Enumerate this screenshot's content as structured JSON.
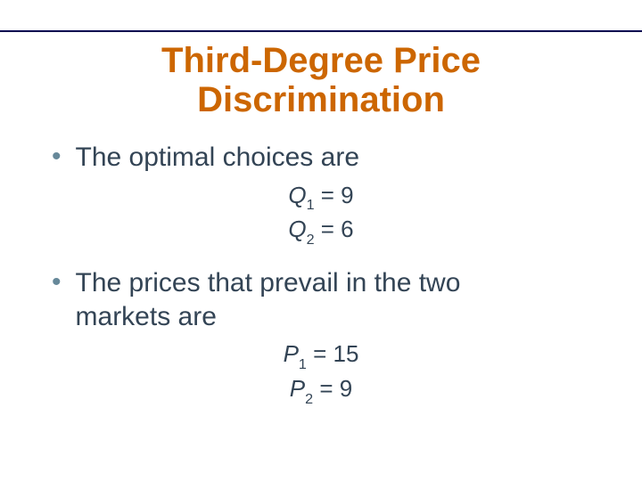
{
  "colors": {
    "title": "#cc6600",
    "body": "#334455",
    "bullet": "#668899"
  },
  "title_line1": "Third-Degree Price",
  "title_line2": "Discrimination",
  "title_fontsize": 40,
  "body_fontsize": 30,
  "eq_fontsize": 26,
  "bullet1": "The optimal choices are",
  "eq1": {
    "var": "Q",
    "sub": "1",
    "rhs": " = 9"
  },
  "eq2": {
    "var": "Q",
    "sub": "2",
    "rhs": " = 6"
  },
  "bullet2_line1": "The prices that prevail in the two",
  "bullet2_line2": "markets are",
  "eq3": {
    "var": "P",
    "sub": "1",
    "rhs": " = 15"
  },
  "eq4": {
    "var": "P",
    "sub": "2",
    "rhs": " = 9"
  }
}
